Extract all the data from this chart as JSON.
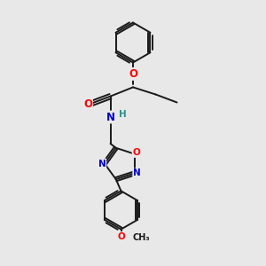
{
  "bg_color": "#e8e8e8",
  "bond_color": "#1a1a1a",
  "atom_colors": {
    "O": "#ff0000",
    "N": "#0000cc",
    "H": "#2f8f8f",
    "C": "#1a1a1a"
  },
  "font_size_atom": 8.5,
  "font_size_small": 7.5,
  "lw": 1.4
}
